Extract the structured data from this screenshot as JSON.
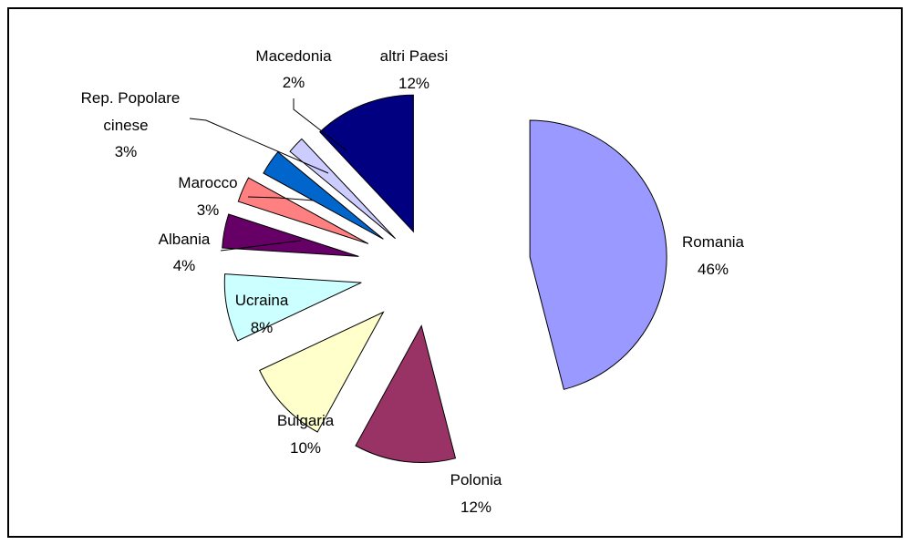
{
  "chart_data": {
    "type": "pie",
    "title": "",
    "exploded": true,
    "start_angle_deg": 0,
    "direction": "clockwise",
    "slices": [
      {
        "label": "Romania",
        "percent_label": "46%",
        "value": 46,
        "color": "#9999FF"
      },
      {
        "label": "Polonia",
        "percent_label": "12%",
        "value": 12,
        "color": "#993366"
      },
      {
        "label": "Bulgaria",
        "percent_label": "10%",
        "value": 10,
        "color": "#FFFFCC"
      },
      {
        "label": "Ucraina",
        "percent_label": "8%",
        "value": 8,
        "color": "#CCFFFF"
      },
      {
        "label": "Albania",
        "percent_label": "4%",
        "value": 4,
        "color": "#660066"
      },
      {
        "label": "Marocco",
        "percent_label": "3%",
        "value": 3,
        "color": "#FF8080"
      },
      {
        "label": "Rep. Popolare cinese",
        "percent_label": "3%",
        "value": 3,
        "color": "#0066CC"
      },
      {
        "label": "Macedonia",
        "percent_label": "2%",
        "value": 2,
        "color": "#CCCCFF"
      },
      {
        "label": "altri Paesi",
        "percent_label": "12%",
        "value": 12,
        "color": "#000080"
      }
    ]
  }
}
